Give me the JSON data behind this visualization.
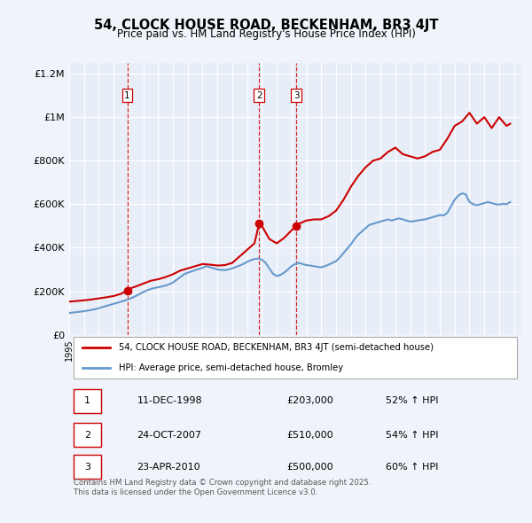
{
  "title": "54, CLOCK HOUSE ROAD, BECKENHAM, BR3 4JT",
  "subtitle": "Price paid vs. HM Land Registry's House Price Index (HPI)",
  "background_color": "#f0f4fa",
  "plot_background": "#e8eef8",
  "legend_line1": "54, CLOCK HOUSE ROAD, BECKENHAM, BR3 4JT (semi-detached house)",
  "legend_line2": "HPI: Average price, semi-detached house, Bromley",
  "footer": "Contains HM Land Registry data © Crown copyright and database right 2025.\nThis data is licensed under the Open Government Licence v3.0.",
  "sale_color": "#cc0000",
  "hpi_color": "#6699cc",
  "vline_color": "#cc0000",
  "ylim": [
    0,
    1250000
  ],
  "yticks": [
    0,
    200000,
    400000,
    600000,
    800000,
    1000000,
    1200000
  ],
  "ytick_labels": [
    "£0",
    "£200K",
    "£400K",
    "£600K",
    "£800K",
    "£1M",
    "£1.2M"
  ],
  "transactions": [
    {
      "label": "1",
      "date_num": 1998.92,
      "price": 203000,
      "date_str": "11-DEC-1998",
      "pct": "52%"
    },
    {
      "label": "2",
      "date_num": 2007.81,
      "price": 510000,
      "date_str": "24-OCT-2007",
      "pct": "54%"
    },
    {
      "label": "3",
      "date_num": 2010.31,
      "price": 500000,
      "date_str": "23-APR-2010",
      "pct": "60%"
    }
  ],
  "hpi_data": {
    "years": [
      1995.0,
      1995.25,
      1995.5,
      1995.75,
      1996.0,
      1996.25,
      1996.5,
      1996.75,
      1997.0,
      1997.25,
      1997.5,
      1997.75,
      1998.0,
      1998.25,
      1998.5,
      1998.75,
      1999.0,
      1999.25,
      1999.5,
      1999.75,
      2000.0,
      2000.25,
      2000.5,
      2000.75,
      2001.0,
      2001.25,
      2001.5,
      2001.75,
      2002.0,
      2002.25,
      2002.5,
      2002.75,
      2003.0,
      2003.25,
      2003.5,
      2003.75,
      2004.0,
      2004.25,
      2004.5,
      2004.75,
      2005.0,
      2005.25,
      2005.5,
      2005.75,
      2006.0,
      2006.25,
      2006.5,
      2006.75,
      2007.0,
      2007.25,
      2007.5,
      2007.75,
      2008.0,
      2008.25,
      2008.5,
      2008.75,
      2009.0,
      2009.25,
      2009.5,
      2009.75,
      2010.0,
      2010.25,
      2010.5,
      2010.75,
      2011.0,
      2011.25,
      2011.5,
      2011.75,
      2012.0,
      2012.25,
      2012.5,
      2012.75,
      2013.0,
      2013.25,
      2013.5,
      2013.75,
      2014.0,
      2014.25,
      2014.5,
      2014.75,
      2015.0,
      2015.25,
      2015.5,
      2015.75,
      2016.0,
      2016.25,
      2016.5,
      2016.75,
      2017.0,
      2017.25,
      2017.5,
      2017.75,
      2018.0,
      2018.25,
      2018.5,
      2018.75,
      2019.0,
      2019.25,
      2019.5,
      2019.75,
      2020.0,
      2020.25,
      2020.5,
      2020.75,
      2021.0,
      2021.25,
      2021.5,
      2021.75,
      2022.0,
      2022.25,
      2022.5,
      2022.75,
      2023.0,
      2023.25,
      2023.5,
      2023.75,
      2024.0,
      2024.25,
      2024.5,
      2024.75
    ],
    "values": [
      100000,
      102000,
      104000,
      106000,
      108000,
      111000,
      114000,
      117000,
      122000,
      127000,
      132000,
      137000,
      142000,
      147000,
      152000,
      157000,
      163000,
      170000,
      178000,
      187000,
      196000,
      204000,
      210000,
      215000,
      218000,
      222000,
      226000,
      232000,
      240000,
      252000,
      265000,
      278000,
      285000,
      291000,
      297000,
      302000,
      308000,
      315000,
      310000,
      305000,
      300000,
      298000,
      297000,
      300000,
      305000,
      312000,
      318000,
      325000,
      335000,
      342000,
      348000,
      350000,
      345000,
      330000,
      305000,
      280000,
      270000,
      275000,
      285000,
      300000,
      315000,
      325000,
      330000,
      325000,
      320000,
      318000,
      315000,
      312000,
      310000,
      315000,
      322000,
      330000,
      338000,
      355000,
      375000,
      395000,
      415000,
      440000,
      460000,
      475000,
      490000,
      505000,
      510000,
      515000,
      520000,
      525000,
      530000,
      525000,
      530000,
      535000,
      530000,
      525000,
      520000,
      522000,
      525000,
      528000,
      530000,
      535000,
      540000,
      545000,
      550000,
      548000,
      560000,
      590000,
      620000,
      640000,
      650000,
      645000,
      610000,
      600000,
      595000,
      600000,
      605000,
      610000,
      605000,
      600000,
      598000,
      602000,
      600000,
      610000
    ]
  },
  "sale_line_data": {
    "years": [
      1995.0,
      1995.5,
      1996.0,
      1996.5,
      1997.0,
      1997.5,
      1998.0,
      1998.5,
      1998.92,
      1999.0,
      1999.5,
      2000.0,
      2000.5,
      2001.0,
      2001.5,
      2002.0,
      2002.5,
      2003.0,
      2003.5,
      2004.0,
      2004.5,
      2005.0,
      2005.5,
      2006.0,
      2006.5,
      2007.0,
      2007.5,
      2007.81,
      2008.0,
      2008.5,
      2009.0,
      2009.5,
      2010.0,
      2010.31,
      2010.5,
      2011.0,
      2011.5,
      2012.0,
      2012.5,
      2013.0,
      2013.5,
      2014.0,
      2014.5,
      2015.0,
      2015.5,
      2016.0,
      2016.5,
      2017.0,
      2017.5,
      2018.0,
      2018.5,
      2019.0,
      2019.5,
      2020.0,
      2020.5,
      2021.0,
      2021.5,
      2022.0,
      2022.5,
      2023.0,
      2023.5,
      2024.0,
      2024.5,
      2024.75
    ],
    "values": [
      152000,
      155000,
      158000,
      162000,
      167000,
      172000,
      178000,
      188000,
      203000,
      210000,
      222000,
      235000,
      248000,
      255000,
      265000,
      278000,
      295000,
      305000,
      315000,
      325000,
      322000,
      318000,
      320000,
      330000,
      360000,
      390000,
      420000,
      510000,
      500000,
      440000,
      420000,
      445000,
      480000,
      500000,
      510000,
      525000,
      530000,
      530000,
      545000,
      570000,
      620000,
      680000,
      730000,
      770000,
      800000,
      810000,
      840000,
      860000,
      830000,
      820000,
      810000,
      820000,
      840000,
      850000,
      900000,
      960000,
      980000,
      1020000,
      970000,
      1000000,
      950000,
      1000000,
      960000,
      970000
    ]
  }
}
